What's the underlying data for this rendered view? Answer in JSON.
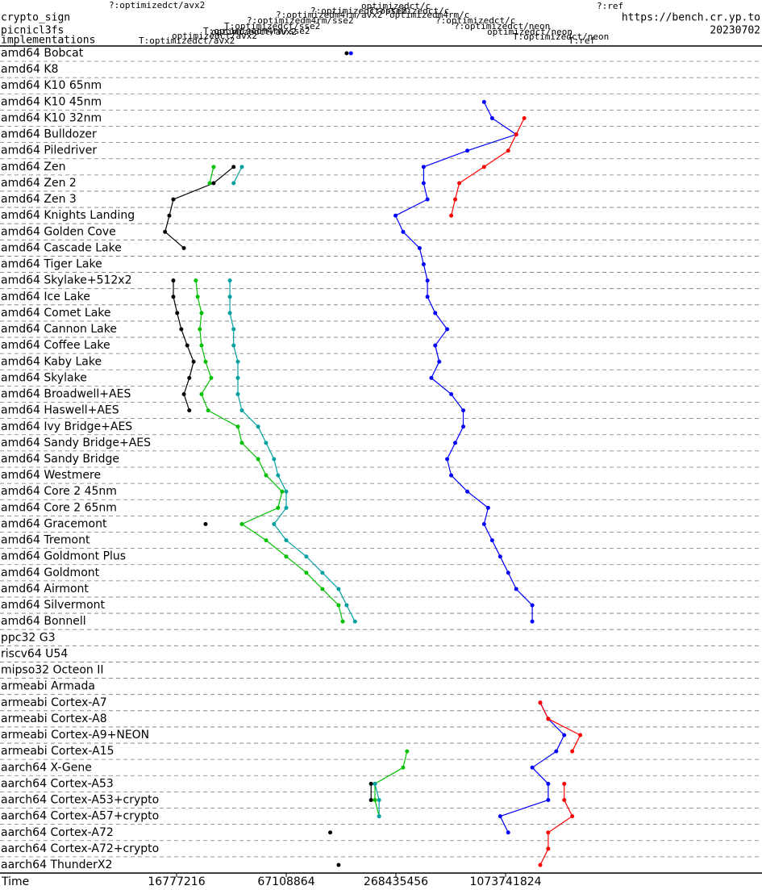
{
  "chart_data": {
    "type": "line",
    "title": "crypto_sign",
    "subtitle": "picnicl3fs",
    "y_label": "implementations",
    "source": "https://bench.cr.yp.to",
    "date": "20230702",
    "x_label": "Time",
    "log_x": true,
    "xlim": [
      1800000,
      27450000000
    ],
    "xticks": [
      16777216,
      67108864,
      268435456,
      1073741824
    ],
    "categories": [
      "amd64 Bobcat",
      "amd64 K8",
      "amd64 K10 65nm",
      "amd64 K10 45nm",
      "amd64 K10 32nm",
      "amd64 Bulldozer",
      "amd64 Piledriver",
      "amd64 Zen",
      "amd64 Zen 2",
      "amd64 Zen 3",
      "amd64 Knights Landing",
      "amd64 Golden Cove",
      "amd64 Cascade Lake",
      "amd64 Tiger Lake",
      "amd64 Skylake+512x2",
      "amd64 Ice Lake",
      "amd64 Comet Lake",
      "amd64 Cannon Lake",
      "amd64 Coffee Lake",
      "amd64 Kaby Lake",
      "amd64 Skylake",
      "amd64 Broadwell+AES",
      "amd64 Haswell+AES",
      "amd64 Ivy Bridge+AES",
      "amd64 Sandy Bridge+AES",
      "amd64 Sandy Bridge",
      "amd64 Westmere",
      "amd64 Core 2 45nm",
      "amd64 Core 2 65nm",
      "amd64 Gracemont",
      "amd64 Tremont",
      "amd64 Goldmont Plus",
      "amd64 Goldmont",
      "amd64 Airmont",
      "amd64 Silvermont",
      "amd64 Bonnell",
      "ppc32 G3",
      "riscv64 U54",
      "mipso32 Octeon II",
      "armeabi Armada",
      "armeabi Cortex-A7",
      "armeabi Cortex-A8",
      "armeabi Cortex-A9+NEON",
      "armeabi Cortex-A15",
      "aarch64 X-Gene",
      "aarch64 Cortex-A53",
      "aarch64 Cortex-A53+crypto",
      "aarch64 Cortex-A57+crypto",
      "aarch64 Cortex-A72",
      "aarch64 Cortex-A72+crypto",
      "aarch64 ThunderX2"
    ],
    "series": [
      {
        "name": "optimizedct/avx2",
        "color": "#000000",
        "values": [
          144000000.0,
          null,
          null,
          null,
          null,
          null,
          null,
          34500000.0,
          26800000.0,
          16100000.0,
          15300000.0,
          14500000.0,
          18400000.0,
          null,
          16100000.0,
          16100000.0,
          16900000.0,
          17800000.0,
          19200000.0,
          20800000.0,
          19700000.0,
          18400000.0,
          19700000.0,
          null,
          null,
          null,
          null,
          null,
          null,
          24200000.0,
          null,
          null,
          null,
          null,
          null,
          null,
          null,
          null,
          null,
          null,
          null,
          null,
          null,
          null,
          null,
          196000000.0,
          196000000.0,
          null,
          117000000.0,
          null,
          130000000.0
        ]
      },
      {
        "name": "optimizedct/c",
        "color": "#00c000",
        "values": [
          null,
          null,
          null,
          null,
          null,
          null,
          null,
          26800000.0,
          25500000.0,
          null,
          null,
          null,
          null,
          null,
          21400000.0,
          21900000.0,
          23000000.0,
          22500000.0,
          23000000.0,
          24200000.0,
          26000000.0,
          23000000.0,
          25000000.0,
          36400000.0,
          38300000.0,
          47000000.0,
          52000000.0,
          63700000.0,
          60500000.0,
          38300000.0,
          52000000.0,
          67100000.0,
          86500000.0,
          106000000.0,
          130000000.0,
          137000000.0,
          null,
          null,
          null,
          null,
          null,
          null,
          null,
          309000000.0,
          294000000.0,
          206000000.0,
          206000000.0,
          217000000.0,
          null,
          null,
          null
        ]
      },
      {
        "name": "T:optimizedct/sse2",
        "color": "#00a0a0",
        "values": [
          null,
          null,
          null,
          null,
          null,
          null,
          null,
          38300000.0,
          34500000.0,
          null,
          null,
          null,
          null,
          null,
          32900000.0,
          32900000.0,
          32900000.0,
          34500000.0,
          34500000.0,
          36400000.0,
          36400000.0,
          36400000.0,
          38300000.0,
          47000000.0,
          52000000.0,
          57500000.0,
          60500000.0,
          67100000.0,
          67100000.0,
          57500000.0,
          67100000.0,
          86500000.0,
          106000000.0,
          130000000.0,
          144000000.0,
          160000000.0,
          null,
          null,
          null,
          null,
          null,
          null,
          null,
          null,
          null,
          206000000.0,
          217000000.0,
          217000000.0,
          null,
          null,
          null
        ]
      },
      {
        "name": "T:ref",
        "color": "#0000ff",
        "values": [
          152000000.0,
          null,
          null,
          818000000.0,
          906000000.0,
          1228000000.0,
          662000000.0,
          381000000.0,
          381000000.0,
          400000000.0,
          267000000.0,
          294000000.0,
          362000000.0,
          381000000.0,
          400000000.0,
          400000000.0,
          441000000.0,
          513000000.0,
          441000000.0,
          464000000.0,
          420000000.0,
          540000000.0,
          629000000.0,
          629000000.0,
          568000000.0,
          513000000.0,
          540000000.0,
          662000000.0,
          861000000.0,
          818000000.0,
          906000000.0,
          1003000000.0,
          1110000000.0,
          1228000000.0,
          1504000000.0,
          1504000000.0,
          null,
          null,
          null,
          null,
          1664000000.0,
          1840000000.0,
          2253000000.0,
          2036000000.0,
          1504000000.0,
          1840000000.0,
          1840000000.0,
          1003000000.0,
          1110000000.0,
          null,
          null
        ]
      },
      {
        "name": "?:ref",
        "color": "#ff0000",
        "values": [
          null,
          null,
          null,
          null,
          1359000000.0,
          1228000000.0,
          1110000000.0,
          818000000.0,
          598000000.0,
          568000000.0,
          540000000.0,
          null,
          null,
          null,
          null,
          null,
          null,
          null,
          null,
          null,
          null,
          null,
          null,
          null,
          null,
          null,
          null,
          null,
          null,
          null,
          null,
          null,
          null,
          null,
          null,
          null,
          null,
          null,
          null,
          null,
          1664000000.0,
          1840000000.0,
          2760000000.0,
          2494000000.0,
          null,
          2253000000.0,
          2253000000.0,
          2494000000.0,
          1840000000.0,
          1840000000.0,
          1664000000.0
        ]
      }
    ],
    "other_implementations": [
      {
        "name": "?:optimizedct/avx2",
        "color": "#0000ff"
      },
      {
        "name": "?:optimizedm4rm/avx2",
        "color": "#ff0000"
      },
      {
        "name": "?:optimizedct/sse2",
        "color": "#000000"
      },
      {
        "name": "?:optimizedm4rm/sse2",
        "color": "#0000ff"
      },
      {
        "name": "T:optimizedm4rm/sse2",
        "color": "#00a0a0"
      },
      {
        "name": "optimizedct/avx2",
        "color": "#00c000"
      },
      {
        "name": "T:optimizedct/avx2",
        "color": "#ff0000"
      },
      {
        "name": "T:optimizedct/c",
        "color": "#00a0a0"
      },
      {
        "name": "optimizedm4rm/c",
        "color": "#0000ff"
      },
      {
        "name": "?:optimizedct/c",
        "color": "#ff0000"
      },
      {
        "name": "?:optimizedct/neon",
        "color": "#000000"
      },
      {
        "name": "optimizedct/neon",
        "color": "#00c000"
      },
      {
        "name": "T:optimizedct/neon",
        "color": "#00a0a0"
      }
    ]
  }
}
